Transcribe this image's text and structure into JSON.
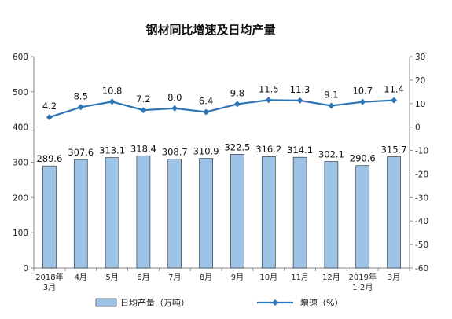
{
  "chart_data": {
    "type": "bar",
    "title": "钢材同比增速及日均产量",
    "categories": [
      [
        "2018年",
        "3月"
      ],
      [
        "4月"
      ],
      [
        "5月"
      ],
      [
        "6月"
      ],
      [
        "7月"
      ],
      [
        "8月"
      ],
      [
        "9月"
      ],
      [
        "10月"
      ],
      [
        "11月"
      ],
      [
        "12月"
      ],
      [
        "2019年",
        "1-2月"
      ],
      [
        "3月"
      ]
    ],
    "series": [
      {
        "name": "日均产量（万吨）",
        "type": "bar",
        "axis": "left",
        "color": "#9DC3E6",
        "values": [
          289.6,
          307.6,
          313.1,
          318.4,
          308.7,
          310.9,
          322.5,
          316.2,
          314.1,
          302.1,
          290.6,
          315.7
        ],
        "labels": [
          "289.6",
          "307.6",
          "313.1",
          "318.4",
          "308.7",
          "310.9",
          "322.5",
          "316.2",
          "314.1",
          "302.1",
          "290.6",
          "315.7"
        ]
      },
      {
        "name": "增速（%）",
        "type": "line",
        "axis": "right",
        "color": "#2E75B6",
        "values": [
          4.2,
          8.5,
          10.8,
          7.2,
          8.0,
          6.4,
          9.8,
          11.5,
          11.3,
          9.1,
          10.7,
          11.4
        ],
        "labels": [
          "4.2",
          "8.5",
          "10.8",
          "7.2",
          "8.0",
          "6.4",
          "9.8",
          "11.5",
          "11.3",
          "9.1",
          "10.7",
          "11.4"
        ]
      }
    ],
    "left_axis": {
      "ylim": [
        0,
        600
      ],
      "ticks": [
        "0",
        "100",
        "200",
        "300",
        "400",
        "500",
        "600"
      ]
    },
    "right_axis": {
      "ylim": [
        -60,
        30
      ],
      "ticks": [
        "-60",
        "-50",
        "-40",
        "-30",
        "-20",
        "-10",
        "0",
        "10",
        "20",
        "30"
      ]
    },
    "grid": false,
    "legend_position": "bottom"
  }
}
